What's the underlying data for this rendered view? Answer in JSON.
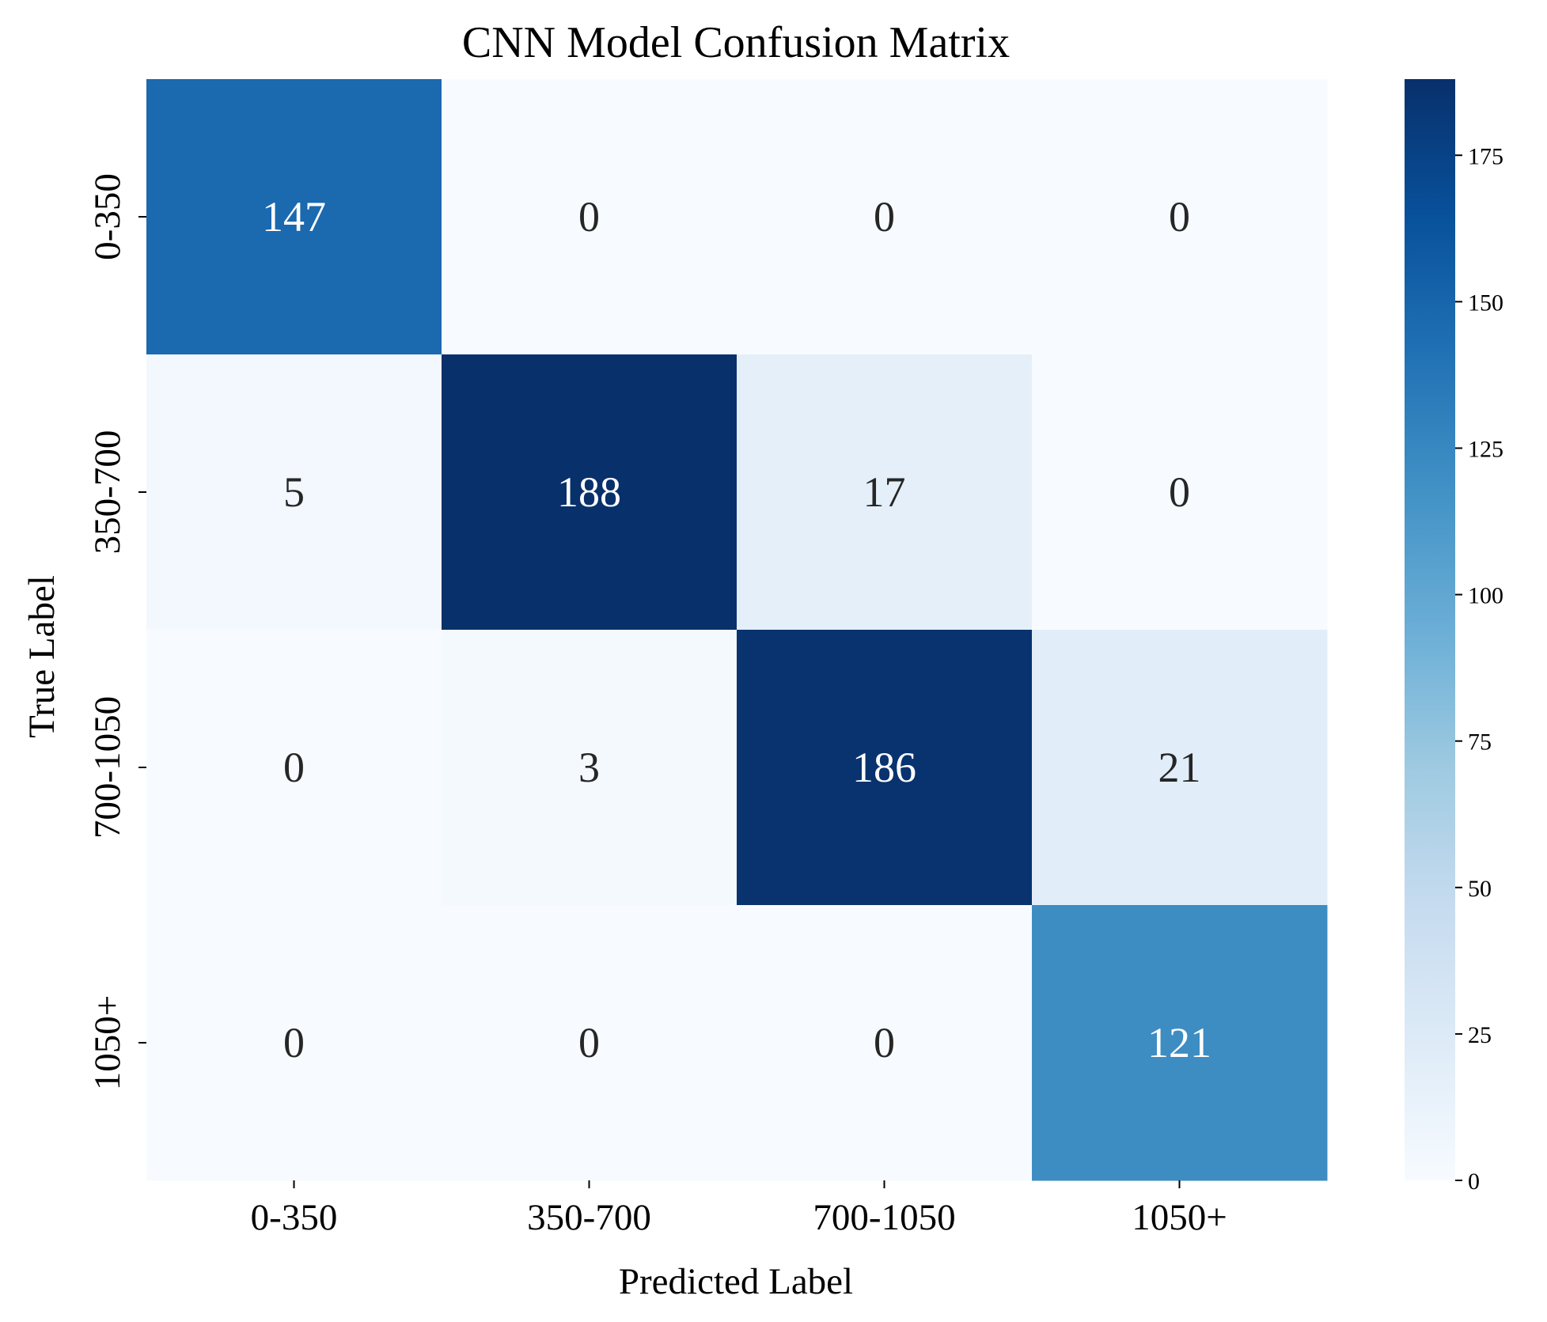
{
  "chart_data": {
    "type": "heatmap",
    "title": "CNN Model Confusion Matrix",
    "xlabel": "Predicted Label",
    "ylabel": "True Label",
    "x_categories": [
      "0-350",
      "350-700",
      "700-1050",
      "1050+"
    ],
    "y_categories": [
      "0-350",
      "350-700",
      "700-1050",
      "1050+"
    ],
    "values": [
      [
        147,
        0,
        0,
        0
      ],
      [
        5,
        188,
        17,
        0
      ],
      [
        0,
        3,
        186,
        21
      ],
      [
        0,
        0,
        0,
        121
      ]
    ],
    "colormap": "Blues",
    "color_range": [
      0,
      188
    ],
    "colorbar_ticks": [
      0,
      25,
      50,
      75,
      100,
      125,
      150,
      175
    ],
    "colorbar_tick_labels": [
      "0",
      "25",
      "50",
      "75",
      "100",
      "125",
      "150",
      "175"
    ],
    "text_color_dark": "#262626",
    "text_color_light": "#ffffff"
  }
}
